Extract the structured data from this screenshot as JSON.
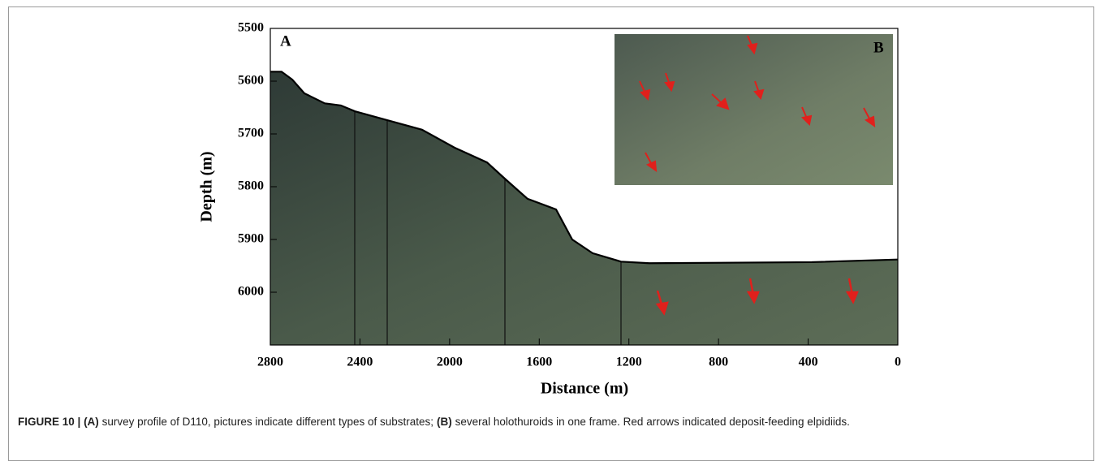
{
  "chart_data": {
    "type": "line",
    "x": [
      2800,
      2750,
      2702,
      2648,
      2557,
      2485,
      2423,
      2278,
      2123,
      1978,
      1833,
      1753,
      1652,
      1525,
      1453,
      1362,
      1235,
      1109,
      384,
      0
    ],
    "values": [
      5582,
      5582,
      5597,
      5623,
      5642,
      5646,
      5657,
      5674,
      5692,
      5726,
      5754,
      5785,
      5823,
      5843,
      5900,
      5926,
      5942,
      5945,
      5943,
      5938
    ],
    "color": "#000000",
    "xlim": [
      2800,
      0
    ],
    "xticks": [
      2800,
      2400,
      2000,
      1600,
      1200,
      800,
      400,
      0
    ],
    "ylim": [
      6100,
      5500
    ],
    "yticks": [
      5500,
      5600,
      5700,
      5800,
      5900,
      6000
    ],
    "xlabel": "Distance (m)",
    "ylabel": "Depth (m)",
    "panel_a": "A",
    "panel_b": "B"
  },
  "caption": {
    "figure": "FIGURE 10 |",
    "a_label": "(A)",
    "a_text": "survey profile of D110, pictures indicate different types of substrates;",
    "b_label": "(B)",
    "b_text": "several holothuroids in one frame. Red arrows indicated deposit-feeding elpidiids."
  }
}
